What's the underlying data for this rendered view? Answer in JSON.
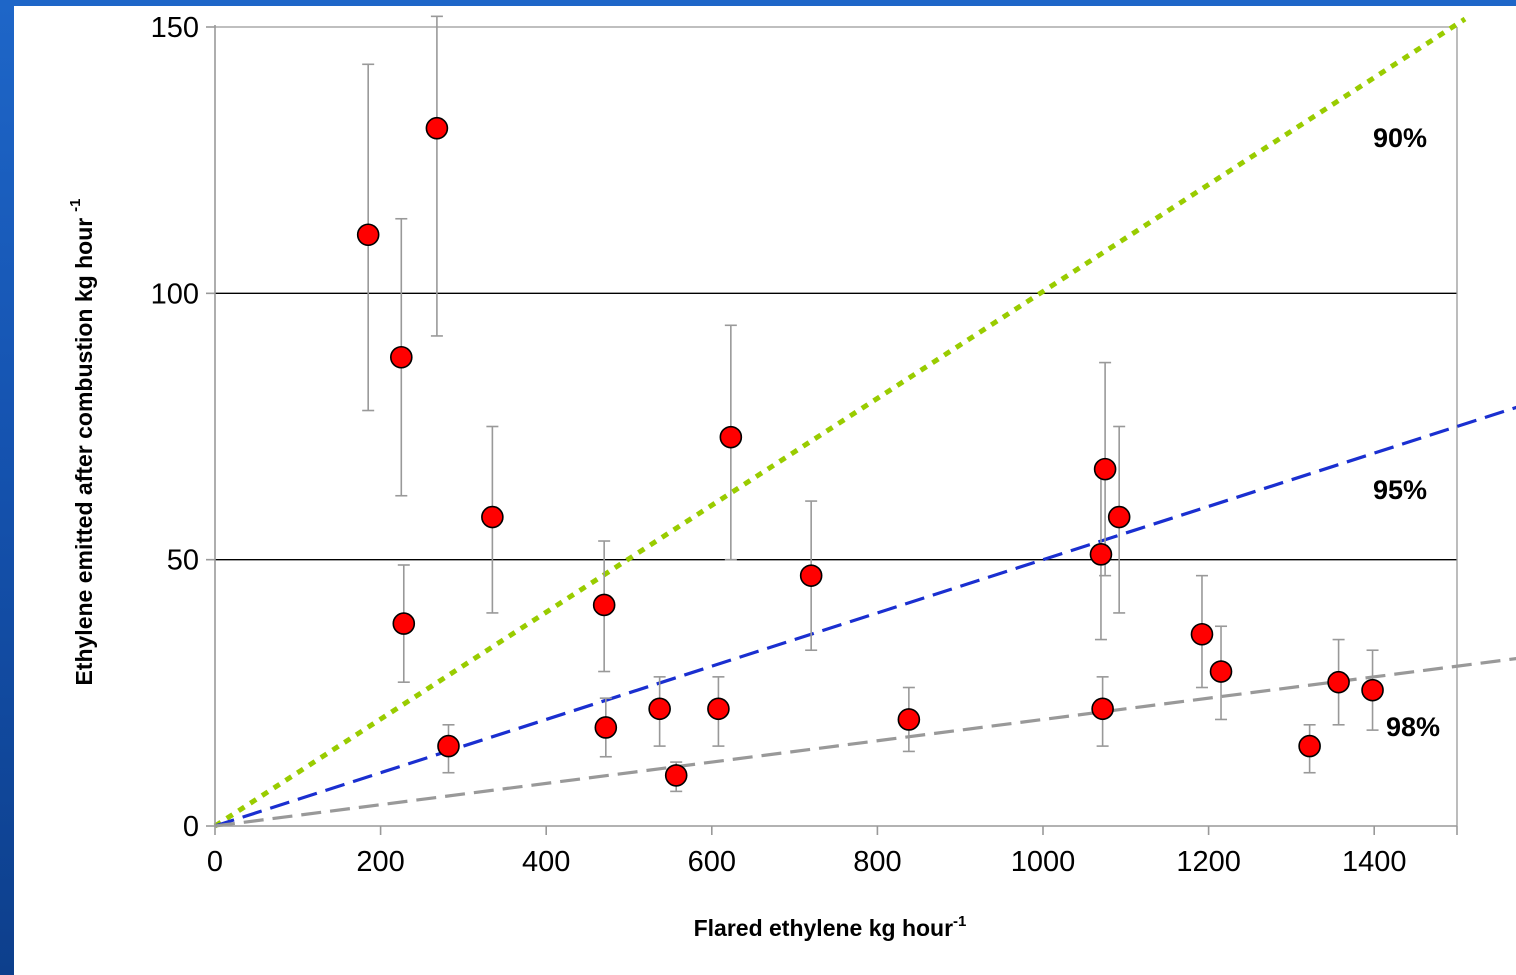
{
  "chart_data": {
    "type": "scatter",
    "title": "",
    "xlabel": "Flared ethylene  kg hour",
    "xlabel_sup": "-1",
    "ylabel": "Ethylene emitted after combustion kg hour",
    "ylabel_sup": "-1",
    "xlim": [
      0,
      1500
    ],
    "ylim": [
      0,
      150
    ],
    "x_ticks": [
      "0",
      "200",
      "400",
      "600",
      "800",
      "1000",
      "1200",
      "1400"
    ],
    "x_tick_values": [
      0,
      200,
      400,
      600,
      800,
      1000,
      1200,
      1400
    ],
    "y_ticks": [
      "0",
      "50",
      "100",
      "150"
    ],
    "y_tick_values": [
      0,
      50,
      100,
      150
    ],
    "grid": "horizontal",
    "points": [
      {
        "x": 185,
        "y": 111,
        "err_low": 78,
        "err_high": 143
      },
      {
        "x": 225,
        "y": 88,
        "err_low": 62,
        "err_high": 114
      },
      {
        "x": 268,
        "y": 131,
        "err_low": 92,
        "err_high": 152
      },
      {
        "x": 228,
        "y": 38,
        "err_low": 27,
        "err_high": 49
      },
      {
        "x": 282,
        "y": 15,
        "err_low": 10,
        "err_high": 19
      },
      {
        "x": 335,
        "y": 58,
        "err_low": 40,
        "err_high": 75
      },
      {
        "x": 470,
        "y": 41.5,
        "err_low": 29,
        "err_high": 53.5
      },
      {
        "x": 472,
        "y": 18.5,
        "err_low": 13,
        "err_high": 24
      },
      {
        "x": 537,
        "y": 22,
        "err_low": 15,
        "err_high": 28
      },
      {
        "x": 557,
        "y": 9.5,
        "err_low": 6.5,
        "err_high": 12
      },
      {
        "x": 608,
        "y": 22,
        "err_low": 15,
        "err_high": 28
      },
      {
        "x": 623,
        "y": 73,
        "err_low": 50,
        "err_high": 94
      },
      {
        "x": 720,
        "y": 47,
        "err_low": 33,
        "err_high": 61
      },
      {
        "x": 838,
        "y": 20,
        "err_low": 14,
        "err_high": 26
      },
      {
        "x": 1070,
        "y": 51,
        "err_low": 35,
        "err_high": 66
      },
      {
        "x": 1075,
        "y": 67,
        "err_low": 47,
        "err_high": 87
      },
      {
        "x": 1092,
        "y": 58,
        "err_low": 40,
        "err_high": 75
      },
      {
        "x": 1072,
        "y": 22,
        "err_low": 15,
        "err_high": 28
      },
      {
        "x": 1192,
        "y": 36,
        "err_low": 26,
        "err_high": 47
      },
      {
        "x": 1215,
        "y": 29,
        "err_low": 20,
        "err_high": 37.5
      },
      {
        "x": 1322,
        "y": 15,
        "err_low": 10,
        "err_high": 19
      },
      {
        "x": 1357,
        "y": 27,
        "err_low": 19,
        "err_high": 35
      },
      {
        "x": 1398,
        "y": 25.5,
        "err_low": 18,
        "err_high": 33
      }
    ],
    "reference_lines": [
      {
        "name": "90%",
        "slope": 0.1,
        "color": "#99cc00",
        "style": "dotted"
      },
      {
        "name": "95%",
        "slope": 0.05,
        "color": "#1a2fd0",
        "style": "dashed"
      },
      {
        "name": "98%",
        "slope": 0.02,
        "color": "#999999",
        "style": "dashed"
      }
    ],
    "reference_labels": {
      "ninety": "90%",
      "ninetyfive": "95%",
      "ninetyeight": "98%"
    },
    "colors": {
      "marker_fill": "#ff0000",
      "marker_edge": "#000000",
      "error_bar": "#999999",
      "grid": "#000000"
    }
  }
}
